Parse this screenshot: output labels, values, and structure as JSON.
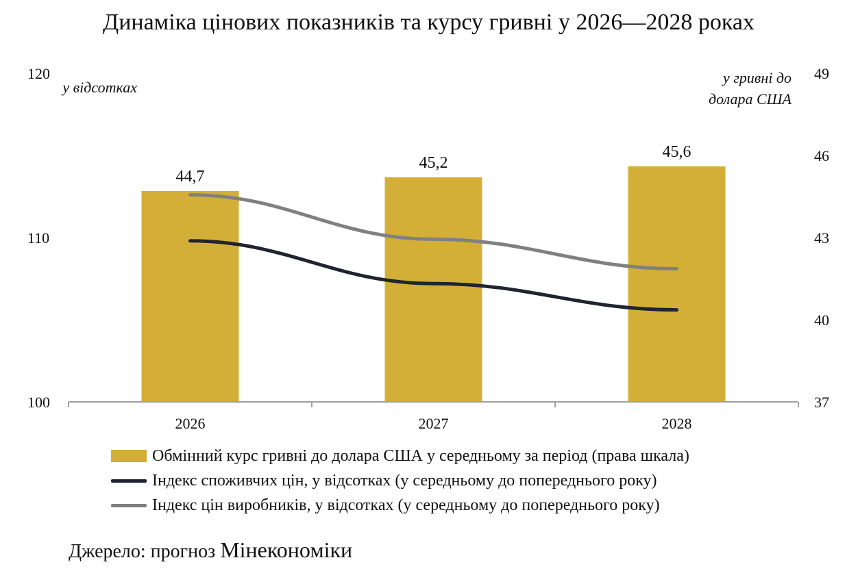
{
  "title": "Динаміка цінових показників та курсу гривні у 2026—2028 роках",
  "chart_data": {
    "type": "bar+line",
    "categories": [
      "2026",
      "2027",
      "2028"
    ],
    "left_axis": {
      "label": "у відсотках",
      "min": 100,
      "max": 120,
      "ticks": [
        "100",
        "110",
        "120"
      ]
    },
    "right_axis": {
      "label_line1": "у гривні до",
      "label_line2": "долара США",
      "min": 37,
      "max": 49,
      "ticks": [
        "37",
        "40",
        "43",
        "46",
        "49"
      ]
    },
    "series": [
      {
        "name": "Обмінний курс гривні до долара США у середньому за період (права шкала)",
        "type": "bar",
        "axis": "right",
        "values": [
          44.7,
          45.2,
          45.6
        ],
        "labels": [
          "44,7",
          "45,2",
          "45,6"
        ],
        "color": "#d4af37"
      },
      {
        "name": "Індекс споживчих цін, у відсотках (у середньому до попереднього року)",
        "type": "line",
        "axis": "left",
        "values": [
          109.8,
          107.2,
          105.6
        ],
        "color": "#1f2430"
      },
      {
        "name": "Індекс цін виробників, у відсотках (у середньому до попереднього року)",
        "type": "line",
        "axis": "left",
        "values": [
          112.6,
          109.9,
          108.1
        ],
        "color": "#808080"
      }
    ]
  },
  "source": {
    "prefix": "Джерело: прогноз ",
    "org": "Мінекономіки"
  }
}
